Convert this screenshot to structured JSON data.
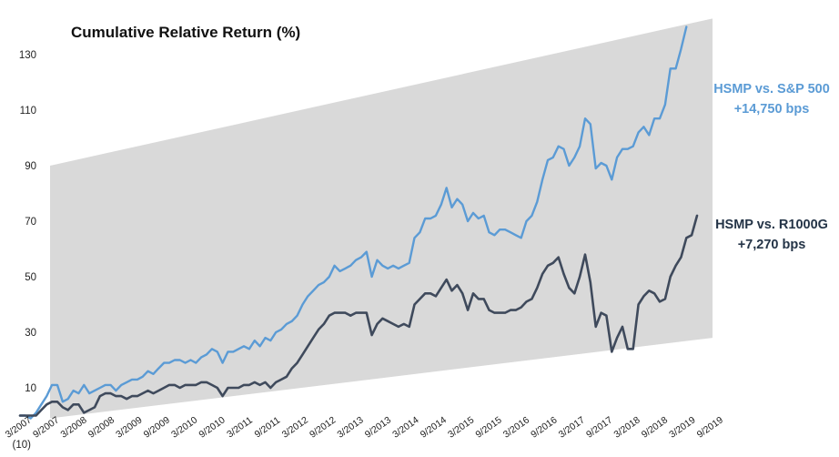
{
  "chart_data": {
    "type": "line",
    "title": "Cumulative Relative Return (%)",
    "ylim": [
      -10,
      140
    ],
    "y_ticks": [
      10,
      30,
      50,
      70,
      90,
      110,
      130
    ],
    "y_extra_tick_label": "(10)",
    "grid": false,
    "x_tick_labels": [
      "3/2007",
      "9/2007",
      "3/2008",
      "9/2008",
      "3/2009",
      "9/2009",
      "3/2010",
      "9/2010",
      "3/2011",
      "9/2011",
      "3/2012",
      "9/2012",
      "3/2013",
      "9/2013",
      "3/2014",
      "9/2014",
      "3/2015",
      "9/2015",
      "3/2016",
      "9/2016",
      "3/2017",
      "9/2017",
      "3/2018",
      "9/2018",
      "3/2019",
      "9/2019"
    ],
    "band": {
      "color": "#d9d9d9",
      "upper": [
        [
          0,
          90
        ],
        [
          50,
          143
        ]
      ],
      "lower": [
        [
          0,
          -1
        ],
        [
          50,
          28
        ]
      ]
    },
    "series": [
      {
        "color": "#5b9bd5",
        "points": [
          [
            0,
            0
          ],
          [
            0.5,
            0
          ],
          [
            1,
            -1
          ],
          [
            1.5,
            1
          ],
          [
            2,
            4
          ],
          [
            2.5,
            7
          ],
          [
            3,
            11
          ],
          [
            3.5,
            11
          ],
          [
            4,
            5
          ],
          [
            4.5,
            6
          ],
          [
            5,
            9
          ],
          [
            5.5,
            8
          ],
          [
            6,
            11
          ],
          [
            6.5,
            8
          ],
          [
            7,
            9
          ],
          [
            7.5,
            10
          ],
          [
            8,
            11
          ],
          [
            8.5,
            11
          ],
          [
            9,
            9
          ],
          [
            9.5,
            11
          ],
          [
            10,
            12
          ],
          [
            10.5,
            13
          ],
          [
            11,
            13
          ],
          [
            11.5,
            14
          ],
          [
            12,
            16
          ],
          [
            12.5,
            15
          ],
          [
            13,
            17
          ],
          [
            13.5,
            19
          ],
          [
            14,
            19
          ],
          [
            14.5,
            20
          ],
          [
            15,
            20
          ],
          [
            15.5,
            19
          ],
          [
            16,
            20
          ],
          [
            16.5,
            19
          ],
          [
            17,
            21
          ],
          [
            17.5,
            22
          ],
          [
            18,
            24
          ],
          [
            18.5,
            23
          ],
          [
            19,
            19
          ],
          [
            19.5,
            23
          ],
          [
            20,
            23
          ],
          [
            20.5,
            24
          ],
          [
            21,
            25
          ],
          [
            21.5,
            24
          ],
          [
            22,
            27
          ],
          [
            22.5,
            25
          ],
          [
            23,
            28
          ],
          [
            23.5,
            27
          ],
          [
            24,
            30
          ],
          [
            24.5,
            31
          ],
          [
            25,
            33
          ],
          [
            25.5,
            34
          ],
          [
            26,
            36
          ],
          [
            26.5,
            40
          ],
          [
            27,
            43
          ],
          [
            27.5,
            45
          ],
          [
            28,
            47
          ],
          [
            28.5,
            48
          ],
          [
            29,
            50
          ],
          [
            29.5,
            54
          ],
          [
            30,
            52
          ],
          [
            30.5,
            53
          ],
          [
            31,
            54
          ],
          [
            31.5,
            56
          ],
          [
            32,
            57
          ],
          [
            32.5,
            59
          ],
          [
            33,
            50
          ],
          [
            33.5,
            56
          ],
          [
            34,
            54
          ],
          [
            34.5,
            53
          ],
          [
            35,
            54
          ],
          [
            35.5,
            53
          ],
          [
            36,
            54
          ],
          [
            36.5,
            55
          ],
          [
            37,
            64
          ],
          [
            37.5,
            66
          ],
          [
            38,
            71
          ],
          [
            38.5,
            71
          ],
          [
            39,
            72
          ],
          [
            39.5,
            76
          ],
          [
            40,
            82
          ],
          [
            40.5,
            75
          ],
          [
            41,
            78
          ],
          [
            41.5,
            76
          ],
          [
            42,
            70
          ],
          [
            42.5,
            73
          ],
          [
            43,
            71
          ],
          [
            43.5,
            72
          ],
          [
            44,
            66
          ],
          [
            44.5,
            65
          ],
          [
            45,
            67
          ],
          [
            45.5,
            67
          ],
          [
            46,
            66
          ],
          [
            46.5,
            65
          ],
          [
            47,
            64
          ],
          [
            47.5,
            70
          ],
          [
            48,
            72
          ],
          [
            48.5,
            77
          ],
          [
            49,
            85
          ],
          [
            49.5,
            92
          ],
          [
            50,
            93
          ],
          [
            50.5,
            97
          ],
          [
            51,
            96
          ],
          [
            51.5,
            90
          ],
          [
            52,
            93
          ],
          [
            52.5,
            97
          ],
          [
            53,
            107
          ],
          [
            53.5,
            105
          ],
          [
            54,
            89
          ],
          [
            54.5,
            91
          ],
          [
            55,
            90
          ],
          [
            55.5,
            85
          ],
          [
            56,
            93
          ],
          [
            56.5,
            96
          ],
          [
            57,
            96
          ],
          [
            57.5,
            97
          ],
          [
            58,
            102
          ],
          [
            58.5,
            104
          ],
          [
            59,
            101
          ],
          [
            59.5,
            107
          ],
          [
            60,
            107
          ],
          [
            60.5,
            112
          ],
          [
            61,
            125
          ],
          [
            61.5,
            125
          ],
          [
            62,
            132
          ],
          [
            62.5,
            140
          ]
        ]
      },
      {
        "color": "#3f4a5c",
        "points": [
          [
            0,
            0
          ],
          [
            0.5,
            0
          ],
          [
            1,
            0
          ],
          [
            1.5,
            0
          ],
          [
            2,
            2
          ],
          [
            2.5,
            4
          ],
          [
            3,
            5
          ],
          [
            3.5,
            5
          ],
          [
            4,
            3
          ],
          [
            4.5,
            2
          ],
          [
            5,
            4
          ],
          [
            5.5,
            4
          ],
          [
            6,
            1
          ],
          [
            6.5,
            2
          ],
          [
            7,
            3
          ],
          [
            7.5,
            7
          ],
          [
            8,
            8
          ],
          [
            8.5,
            8
          ],
          [
            9,
            7
          ],
          [
            9.5,
            7
          ],
          [
            10,
            6
          ],
          [
            10.5,
            7
          ],
          [
            11,
            7
          ],
          [
            11.5,
            8
          ],
          [
            12,
            9
          ],
          [
            12.5,
            8
          ],
          [
            13,
            9
          ],
          [
            13.5,
            10
          ],
          [
            14,
            11
          ],
          [
            14.5,
            11
          ],
          [
            15,
            10
          ],
          [
            15.5,
            11
          ],
          [
            16,
            11
          ],
          [
            16.5,
            11
          ],
          [
            17,
            12
          ],
          [
            17.5,
            12
          ],
          [
            18,
            11
          ],
          [
            18.5,
            10
          ],
          [
            19,
            7
          ],
          [
            19.5,
            10
          ],
          [
            20,
            10
          ],
          [
            20.5,
            10
          ],
          [
            21,
            11
          ],
          [
            21.5,
            11
          ],
          [
            22,
            12
          ],
          [
            22.5,
            11
          ],
          [
            23,
            12
          ],
          [
            23.5,
            10
          ],
          [
            24,
            12
          ],
          [
            24.5,
            13
          ],
          [
            25,
            14
          ],
          [
            25.5,
            17
          ],
          [
            26,
            19
          ],
          [
            26.5,
            22
          ],
          [
            27,
            25
          ],
          [
            27.5,
            28
          ],
          [
            28,
            31
          ],
          [
            28.5,
            33
          ],
          [
            29,
            36
          ],
          [
            29.5,
            37
          ],
          [
            30,
            37
          ],
          [
            30.5,
            37
          ],
          [
            31,
            36
          ],
          [
            31.5,
            37
          ],
          [
            32,
            37
          ],
          [
            32.5,
            37
          ],
          [
            33,
            29
          ],
          [
            33.5,
            33
          ],
          [
            34,
            35
          ],
          [
            34.5,
            34
          ],
          [
            35,
            33
          ],
          [
            35.5,
            32
          ],
          [
            36,
            33
          ],
          [
            36.5,
            32
          ],
          [
            37,
            40
          ],
          [
            37.5,
            42
          ],
          [
            38,
            44
          ],
          [
            38.5,
            44
          ],
          [
            39,
            43
          ],
          [
            39.5,
            46
          ],
          [
            40,
            49
          ],
          [
            40.5,
            45
          ],
          [
            41,
            47
          ],
          [
            41.5,
            44
          ],
          [
            42,
            38
          ],
          [
            42.5,
            44
          ],
          [
            43,
            42
          ],
          [
            43.5,
            42
          ],
          [
            44,
            38
          ],
          [
            44.5,
            37
          ],
          [
            45,
            37
          ],
          [
            45.5,
            37
          ],
          [
            46,
            38
          ],
          [
            46.5,
            38
          ],
          [
            47,
            39
          ],
          [
            47.5,
            41
          ],
          [
            48,
            42
          ],
          [
            48.5,
            46
          ],
          [
            49,
            51
          ],
          [
            49.5,
            54
          ],
          [
            50,
            55
          ],
          [
            50.5,
            57
          ],
          [
            51,
            51
          ],
          [
            51.5,
            46
          ],
          [
            52,
            44
          ],
          [
            52.5,
            50
          ],
          [
            53,
            58
          ],
          [
            53.5,
            48
          ],
          [
            54,
            32
          ],
          [
            54.5,
            37
          ],
          [
            55,
            36
          ],
          [
            55.5,
            23
          ],
          [
            56,
            28
          ],
          [
            56.5,
            32
          ],
          [
            57,
            24
          ],
          [
            57.5,
            24
          ],
          [
            58,
            40
          ],
          [
            58.5,
            43
          ],
          [
            59,
            45
          ],
          [
            59.5,
            44
          ],
          [
            60,
            41
          ],
          [
            60.5,
            42
          ],
          [
            61,
            50
          ],
          [
            61.5,
            54
          ],
          [
            62,
            57
          ],
          [
            62.5,
            64
          ],
          [
            63,
            65
          ],
          [
            63.5,
            72
          ]
        ]
      }
    ],
    "annotations": [
      {
        "line1": "HSMP vs. S&P 500",
        "line2": "+14,750 bps"
      },
      {
        "line1": "HSMP vs. R1000G",
        "line2": "+7,270 bps"
      }
    ]
  }
}
